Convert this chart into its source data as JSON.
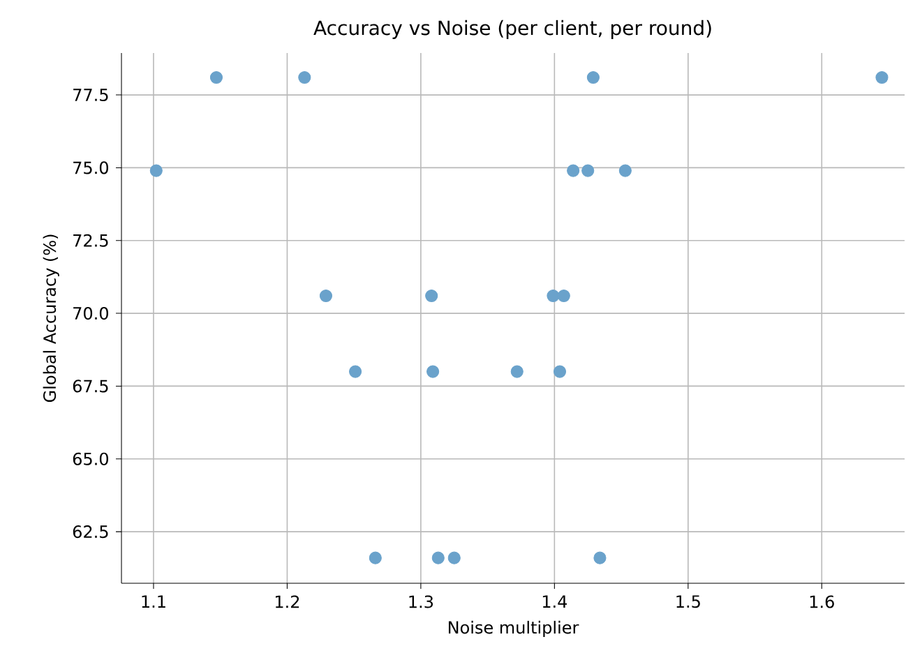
{
  "chart_data": {
    "type": "scatter",
    "title": "Accuracy vs Noise (per client, per round)",
    "xlabel": "Noise multiplier",
    "ylabel": "Global Accuracy (%)",
    "x": [
      1.147,
      1.213,
      1.429,
      1.645,
      1.102,
      1.414,
      1.425,
      1.453,
      1.229,
      1.308,
      1.399,
      1.407,
      1.251,
      1.309,
      1.372,
      1.404,
      1.266,
      1.313,
      1.325,
      1.434
    ],
    "values": [
      78.1,
      78.1,
      78.1,
      78.1,
      74.9,
      74.9,
      74.9,
      74.9,
      70.6,
      70.6,
      70.6,
      70.6,
      68.0,
      68.0,
      68.0,
      68.0,
      61.6,
      61.6,
      61.6,
      61.6
    ],
    "color": "#6aa2cb",
    "marker": "circle",
    "grid": true,
    "xlim": [
      1.076,
      1.662
    ],
    "ylim": [
      60.73,
      78.94
    ],
    "xticks": [
      1.1,
      1.2,
      1.3,
      1.4,
      1.5,
      1.6
    ],
    "yticks": [
      62.5,
      {
        "value": 65,
        "label": "65.0"
      },
      67.5,
      {
        "value": 70,
        "label": "70.0"
      },
      72.5,
      {
        "value": 75,
        "label": "75.0"
      },
      77.5
    ]
  }
}
